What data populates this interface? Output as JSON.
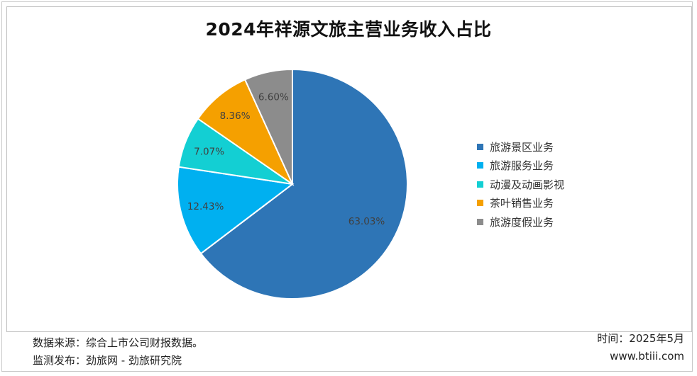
{
  "chart_data": {
    "type": "pie",
    "title": "2024年祥源文旅主营业务收入占比",
    "categories": [
      "旅游景区业务",
      "旅游服务业务",
      "动漫及动画影视",
      "茶叶销售业务",
      "旅游度假业务"
    ],
    "values": [
      63.03,
      12.43,
      7.07,
      8.36,
      6.6
    ],
    "value_labels": [
      "63.03%",
      "12.43%",
      "7.07%",
      "8.36%",
      "6.60%"
    ],
    "colors": [
      "#2e75b6",
      "#00b0f0",
      "#13cfd3",
      "#f5a000",
      "#8c8c8c"
    ],
    "start_angle": "12 o'clock",
    "direction": "clockwise",
    "legend_position": "right"
  },
  "footer": {
    "source": "数据来源：综合上市公司财报数据。",
    "monitor": "监测发布：劲旅网 - 劲旅研究院",
    "time": "时间：2025年5月",
    "site": "www.btiii.com"
  }
}
